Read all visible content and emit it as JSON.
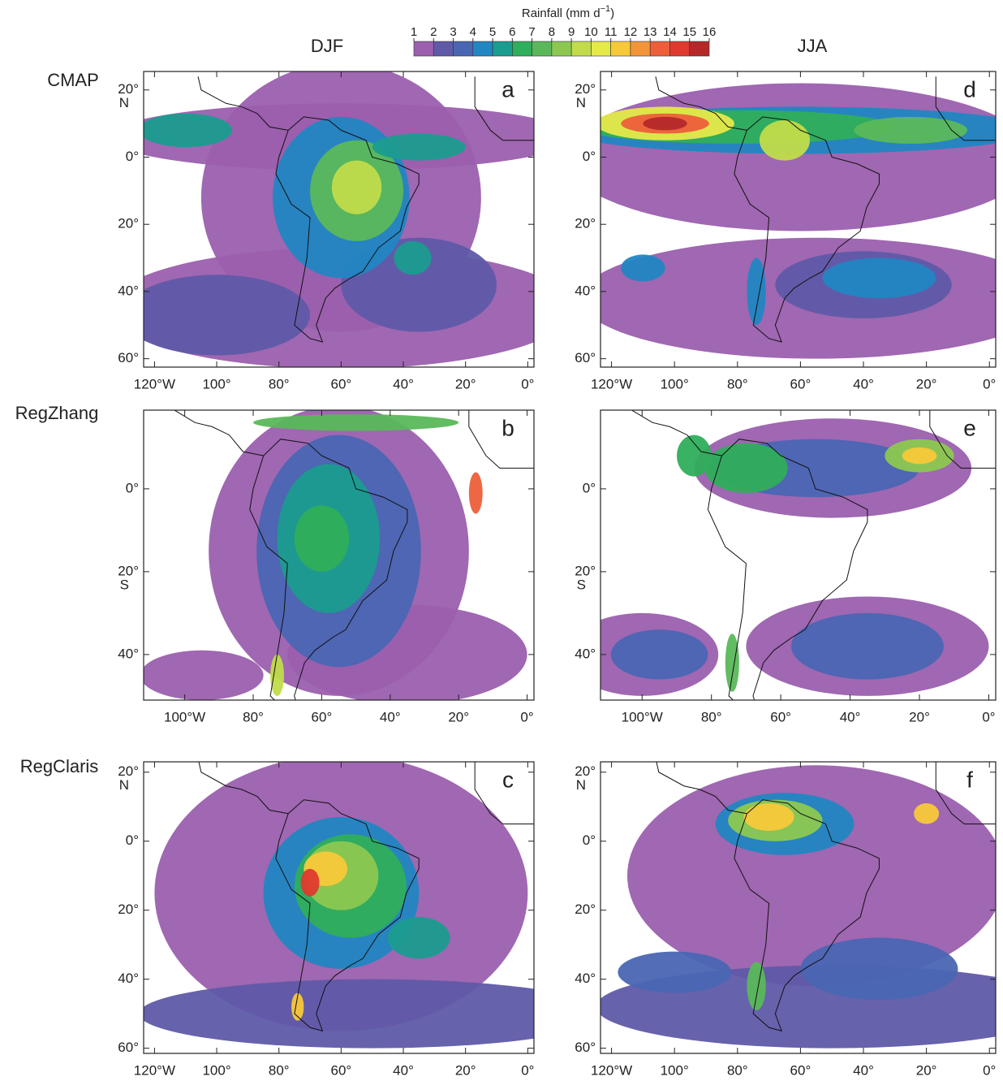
{
  "colorbar": {
    "title": "Rainfall (mm d",
    "title_sup": "−1",
    "title_end": ")",
    "ticks": [
      1,
      2,
      3,
      4,
      5,
      6,
      7,
      8,
      9,
      10,
      11,
      12,
      13,
      14,
      15,
      16
    ],
    "colors": [
      "#9b5fae",
      "#5f5aa8",
      "#4a66b3",
      "#2186c2",
      "#1a9c8f",
      "#2fae5b",
      "#5ab85a",
      "#8cc850",
      "#c1dc4a",
      "#e6e94a",
      "#f7c93a",
      "#f2953a",
      "#ed5f3a",
      "#e03a2e",
      "#b5282a"
    ]
  },
  "columns": [
    "DJF",
    "JJA"
  ],
  "rows": [
    {
      "label": "CMAP",
      "panels": [
        {
          "letter": "a",
          "xlim": [
            -123.5,
            2
          ],
          "ylim": [
            -62.5,
            25.5
          ],
          "xticks": [
            {
              "value": -120,
              "label": "120°W"
            },
            {
              "value": -100,
              "label": "100°"
            },
            {
              "value": -80,
              "label": "80°"
            },
            {
              "value": -60,
              "label": "60°"
            },
            {
              "value": -40,
              "label": "40°"
            },
            {
              "value": -20,
              "label": "20°"
            },
            {
              "value": 0,
              "label": "0°"
            }
          ],
          "yticks": [
            {
              "value": 20,
              "label": "20°",
              "suffix": "N"
            },
            {
              "value": 0,
              "label": "0°"
            },
            {
              "value": -20,
              "label": "20°"
            },
            {
              "value": -40,
              "label": "40°"
            },
            {
              "value": -60,
              "label": "60°"
            }
          ]
        },
        {
          "letter": "d",
          "xlim": [
            -123.5,
            2
          ],
          "ylim": [
            -62.5,
            25.5
          ],
          "xticks": [
            {
              "value": -120,
              "label": "120°W"
            },
            {
              "value": -100,
              "label": "100°"
            },
            {
              "value": -80,
              "label": "80°"
            },
            {
              "value": -60,
              "label": "60°"
            },
            {
              "value": -40,
              "label": "40°"
            },
            {
              "value": -20,
              "label": "20°"
            },
            {
              "value": 0,
              "label": "0°"
            }
          ],
          "yticks": [
            {
              "value": 20,
              "label": "20°",
              "suffix": "N"
            },
            {
              "value": 0,
              "label": "0°"
            },
            {
              "value": -20,
              "label": "20°"
            },
            {
              "value": -40,
              "label": "40°"
            },
            {
              "value": -60,
              "label": "60°"
            }
          ]
        }
      ]
    },
    {
      "label": "RegZhang",
      "panels": [
        {
          "letter": "b",
          "xlim": [
            -112,
            2
          ],
          "ylim": [
            -51,
            19
          ],
          "xticks": [
            {
              "value": -100,
              "label": "100°W"
            },
            {
              "value": -80,
              "label": "80°"
            },
            {
              "value": -60,
              "label": "60°"
            },
            {
              "value": -40,
              "label": "40°"
            },
            {
              "value": -20,
              "label": "20°"
            },
            {
              "value": 0,
              "label": "0°"
            }
          ],
          "yticks": [
            {
              "value": 0,
              "label": "0°"
            },
            {
              "value": -20,
              "label": "20°",
              "suffix": "S"
            },
            {
              "value": -40,
              "label": "40°"
            }
          ]
        },
        {
          "letter": "e",
          "xlim": [
            -112,
            2
          ],
          "ylim": [
            -51,
            19
          ],
          "xticks": [
            {
              "value": -100,
              "label": "100°W"
            },
            {
              "value": -80,
              "label": "80°"
            },
            {
              "value": -60,
              "label": "60°"
            },
            {
              "value": -40,
              "label": "40°"
            },
            {
              "value": -20,
              "label": "20°"
            },
            {
              "value": 0,
              "label": "0°"
            }
          ],
          "yticks": [
            {
              "value": 0,
              "label": "0°"
            },
            {
              "value": -20,
              "label": "20°",
              "suffix": "S"
            },
            {
              "value": -40,
              "label": "40°"
            }
          ]
        }
      ]
    },
    {
      "label": "RegClaris",
      "panels": [
        {
          "letter": "c",
          "xlim": [
            -123.5,
            2
          ],
          "ylim": [
            -61.5,
            23
          ],
          "xticks": [
            {
              "value": -120,
              "label": "120°W"
            },
            {
              "value": -100,
              "label": "100°"
            },
            {
              "value": -80,
              "label": "80°"
            },
            {
              "value": -60,
              "label": "60°"
            },
            {
              "value": -40,
              "label": "40°"
            },
            {
              "value": -20,
              "label": "20°"
            },
            {
              "value": 0,
              "label": "0°"
            }
          ],
          "yticks": [
            {
              "value": 20,
              "label": "20°",
              "suffix": "N"
            },
            {
              "value": 0,
              "label": "0°"
            },
            {
              "value": -20,
              "label": "20°"
            },
            {
              "value": -40,
              "label": "40°"
            },
            {
              "value": -60,
              "label": "60°"
            }
          ]
        },
        {
          "letter": "f",
          "xlim": [
            -123.5,
            2
          ],
          "ylim": [
            -61.5,
            23
          ],
          "xticks": [
            {
              "value": -120,
              "label": "120°W"
            },
            {
              "value": -100,
              "label": "100°"
            },
            {
              "value": -80,
              "label": "80°"
            },
            {
              "value": -60,
              "label": "60°"
            },
            {
              "value": -40,
              "label": "40°"
            },
            {
              "value": -20,
              "label": "20°"
            },
            {
              "value": 0,
              "label": "0°"
            }
          ],
          "yticks": [
            {
              "value": 20,
              "label": "20°",
              "suffix": "N"
            },
            {
              "value": 0,
              "label": "0°"
            },
            {
              "value": -20,
              "label": "20°"
            },
            {
              "value": -40,
              "label": "40°"
            },
            {
              "value": -60,
              "label": "60°"
            }
          ]
        }
      ]
    }
  ]
}
